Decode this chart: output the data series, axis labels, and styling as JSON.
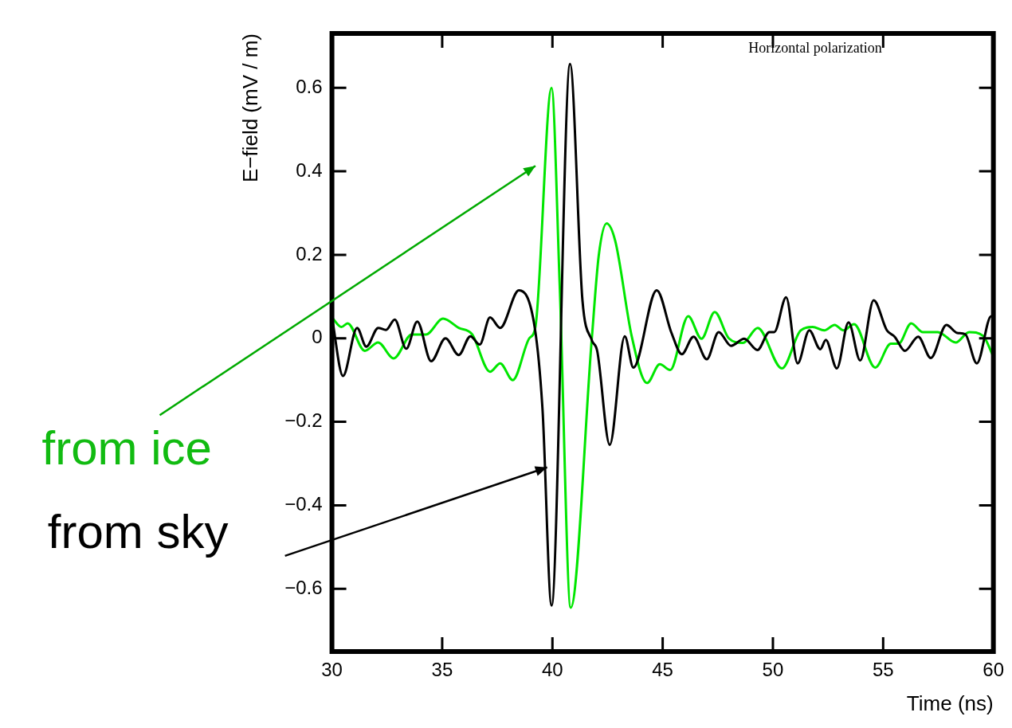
{
  "chart_data": {
    "type": "line",
    "xlabel": "Time (ns)",
    "ylabel": "E−field (mV / m)",
    "annotations": [
      "Horizontal polarization"
    ],
    "xlim": [
      30,
      60
    ],
    "xticks": [
      30,
      35,
      40,
      45,
      50,
      55,
      60
    ],
    "ylim": [
      -0.75,
      0.73
    ],
    "yticks": [
      -0.6,
      -0.4,
      -0.2,
      0,
      0.2,
      0.4,
      0.6
    ],
    "grid": false,
    "legend": "left",
    "marker": "none",
    "line_style": "solid",
    "series": [
      {
        "name": "from sky",
        "color": "#000000",
        "x": [
          30,
          30.5,
          31.14,
          31.56,
          32.1,
          32.45,
          32.85,
          33.37,
          33.87,
          34.5,
          35.15,
          35.75,
          36.28,
          36.7,
          37.17,
          37.63,
          38.48,
          39.2,
          39.55,
          39.96,
          40.8,
          41.36,
          41.79,
          42.03,
          42.6,
          43.28,
          43.67,
          44.73,
          45.4,
          45.87,
          46.4,
          47.0,
          47.54,
          48.1,
          48.7,
          49.3,
          49.84,
          50.06,
          50.6,
          51.12,
          51.65,
          52.15,
          52.4,
          52.9,
          53.43,
          53.96,
          54.57,
          55.17,
          55.52,
          55.99,
          56.59,
          57.16,
          57.87,
          58.36,
          58.72,
          59.25,
          59.9,
          60
        ],
        "values": [
          0.05,
          -0.09,
          0.025,
          -0.02,
          0.025,
          0.02,
          0.045,
          -0.025,
          0.04,
          -0.055,
          0.0,
          -0.04,
          0.005,
          -0.015,
          0.05,
          0.025,
          0.115,
          0.025,
          -0.17,
          -0.64,
          0.657,
          0.092,
          -0.005,
          -0.03,
          -0.255,
          0.005,
          -0.07,
          0.115,
          0.013,
          -0.038,
          0.004,
          -0.05,
          0.015,
          -0.018,
          -0.001,
          -0.028,
          0.015,
          0.015,
          0.098,
          -0.06,
          0.019,
          -0.026,
          -0.004,
          -0.072,
          0.038,
          -0.053,
          0.091,
          0.019,
          0.004,
          -0.03,
          0.004,
          -0.047,
          0.032,
          0.013,
          0.01,
          -0.06,
          0.053,
          0.05
        ]
      },
      {
        "name": "from ice",
        "color": "#00e600",
        "x": [
          30,
          30.43,
          30.71,
          31.49,
          32.09,
          32.8,
          33.62,
          34.26,
          35.04,
          35.75,
          36.35,
          37.17,
          37.63,
          38.2,
          38.95,
          39.23,
          39.96,
          40.33,
          40.83,
          41.78,
          42.1,
          42.46,
          42.85,
          43.6,
          44.29,
          44.87,
          45.34,
          46.16,
          46.76,
          47.36,
          48.0,
          48.64,
          49.31,
          50.41,
          51.26,
          51.8,
          52.33,
          52.8,
          53.2,
          53.68,
          54.64,
          55.35,
          55.7,
          56.27,
          56.8,
          57.48,
          58.29,
          58.9,
          59.53,
          60
        ],
        "values": [
          0.05,
          0.027,
          0.036,
          -0.03,
          -0.01,
          -0.048,
          0.009,
          0.009,
          0.047,
          0.025,
          0.01,
          -0.08,
          -0.06,
          -0.1,
          0.0,
          0.028,
          0.6,
          0.127,
          -0.645,
          -0.005,
          0.198,
          0.275,
          0.233,
          0.004,
          -0.107,
          -0.062,
          -0.076,
          0.053,
          -0.001,
          0.063,
          0.0,
          -0.011,
          0.025,
          -0.072,
          0.019,
          0.027,
          0.019,
          0.032,
          0.019,
          0.034,
          -0.07,
          -0.013,
          -0.013,
          0.036,
          0.015,
          0.015,
          -0.01,
          0.015,
          0.006,
          -0.044
        ]
      }
    ]
  }
}
